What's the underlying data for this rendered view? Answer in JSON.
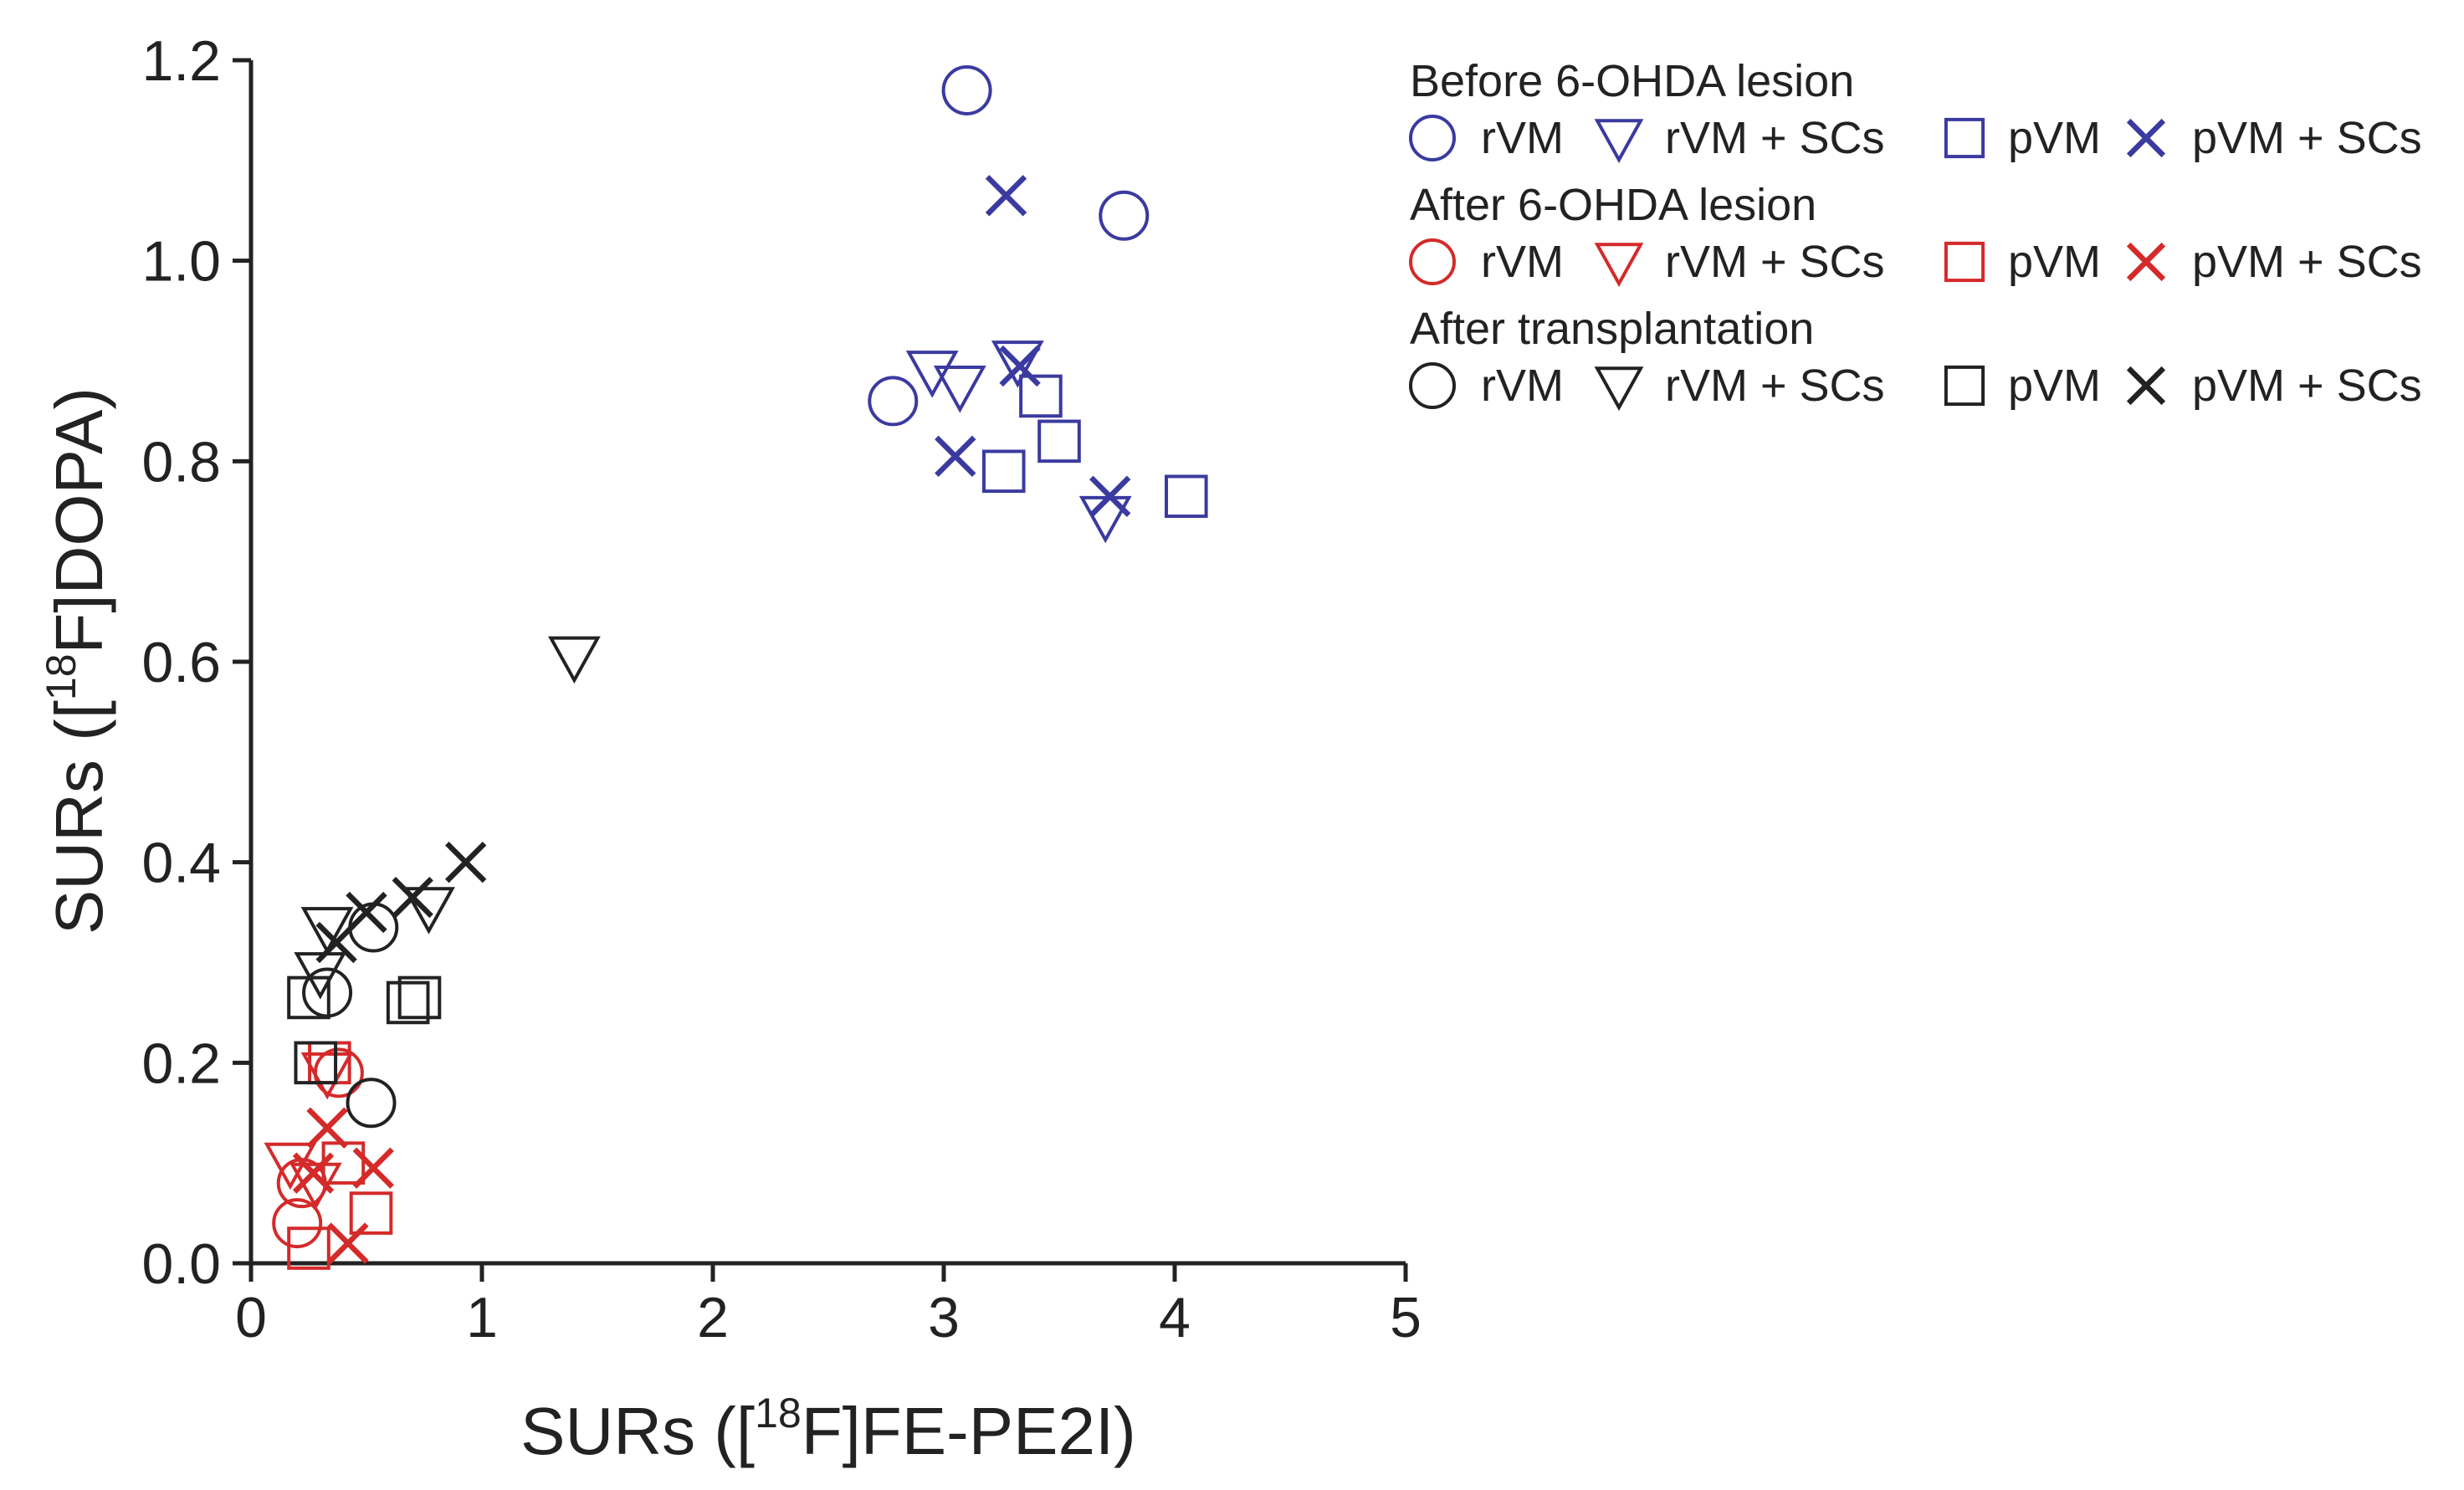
{
  "chart_data": {
    "type": "scatter",
    "xlabel": {
      "pre": "SURs ([",
      "sup": "18",
      "post": "F]FE-PE2I)"
    },
    "ylabel": {
      "pre": "SURs ([",
      "sup": "18",
      "post": "F]DOPA)"
    },
    "xlim": [
      0,
      5
    ],
    "ylim": [
      0,
      1.2
    ],
    "x_ticks": [
      "0",
      "1",
      "2",
      "3",
      "4",
      "5"
    ],
    "y_ticks": [
      "0.0",
      "0.2",
      "0.4",
      "0.6",
      "0.8",
      "1.0",
      "1.2"
    ],
    "grid": false,
    "legend_position": "top-right",
    "groups": [
      {
        "title": "Before 6-OHDA lesion",
        "color": "#3a3aa0",
        "series": [
          {
            "name": "rVM",
            "marker": "circle",
            "points": [
              [
                3.1,
                1.17
              ],
              [
                3.78,
                1.045
              ],
              [
                2.78,
                0.86
              ]
            ]
          },
          {
            "name": "rVM + SCs",
            "marker": "triangle-down",
            "points": [
              [
                2.95,
                0.89
              ],
              [
                3.07,
                0.875
              ],
              [
                3.32,
                0.9
              ],
              [
                3.7,
                0.745
              ]
            ]
          },
          {
            "name": "pVM",
            "marker": "square",
            "points": [
              [
                3.42,
                0.865
              ],
              [
                3.5,
                0.82
              ],
              [
                3.26,
                0.79
              ],
              [
                4.05,
                0.765
              ]
            ]
          },
          {
            "name": "pVM + SCs",
            "marker": "x",
            "points": [
              [
                3.27,
                1.065
              ],
              [
                3.33,
                0.895
              ],
              [
                3.05,
                0.805
              ],
              [
                3.72,
                0.765
              ]
            ]
          }
        ]
      },
      {
        "title": "After 6-OHDA lesion",
        "color": "#d42a2a",
        "series": [
          {
            "name": "rVM",
            "marker": "circle",
            "points": [
              [
                0.22,
                0.08
              ],
              [
                0.2,
                0.04
              ],
              [
                0.38,
                0.19
              ]
            ]
          },
          {
            "name": "rVM + SCs",
            "marker": "triangle-down",
            "points": [
              [
                0.17,
                0.1
              ],
              [
                0.33,
                0.19
              ],
              [
                0.28,
                0.08
              ]
            ]
          },
          {
            "name": "pVM",
            "marker": "square",
            "points": [
              [
                0.25,
                0.015
              ],
              [
                0.52,
                0.05
              ],
              [
                0.4,
                0.1
              ],
              [
                0.34,
                0.2
              ]
            ]
          },
          {
            "name": "pVM + SCs",
            "marker": "x",
            "points": [
              [
                0.33,
                0.135
              ],
              [
                0.27,
                0.09
              ],
              [
                0.53,
                0.095
              ],
              [
                0.42,
                0.02
              ]
            ]
          }
        ]
      },
      {
        "title": "After transplantation",
        "color": "#222222",
        "series": [
          {
            "name": "rVM",
            "marker": "circle",
            "points": [
              [
                0.52,
                0.16
              ],
              [
                0.33,
                0.27
              ],
              [
                0.53,
                0.335
              ]
            ]
          },
          {
            "name": "rVM + SCs",
            "marker": "triangle-down",
            "points": [
              [
                1.4,
                0.605
              ],
              [
                0.77,
                0.355
              ],
              [
                0.33,
                0.335
              ],
              [
                0.3,
                0.29
              ]
            ]
          },
          {
            "name": "pVM",
            "marker": "square",
            "points": [
              [
                0.25,
                0.265
              ],
              [
                0.68,
                0.26
              ],
              [
                0.73,
                0.265
              ],
              [
                0.28,
                0.2
              ]
            ]
          },
          {
            "name": "pVM + SCs",
            "marker": "x",
            "points": [
              [
                0.93,
                0.4
              ],
              [
                0.7,
                0.365
              ],
              [
                0.5,
                0.35
              ],
              [
                0.37,
                0.32
              ]
            ]
          }
        ]
      }
    ]
  }
}
